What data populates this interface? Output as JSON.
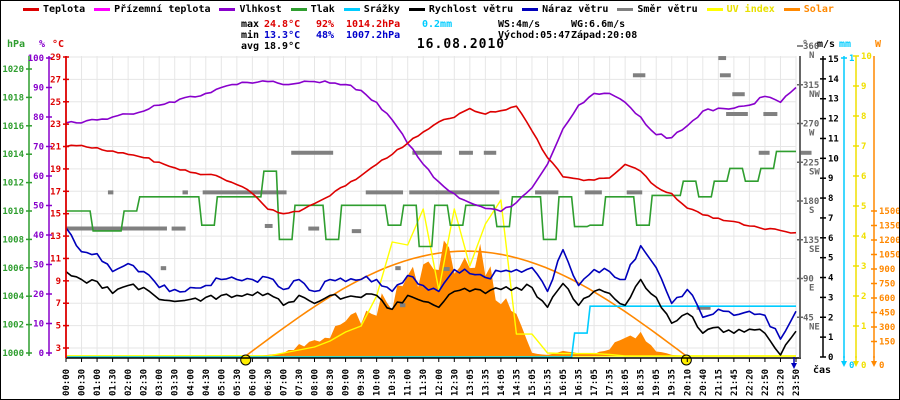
{
  "title": "16.08.2010",
  "colors": {
    "temperature": "#dd0000",
    "ground_temperature": "#ff00ff",
    "humidity": "#8800cc",
    "pressure": "#2f9e2f",
    "precipitation": "#00ccff",
    "wind_speed": "#000000",
    "wind_gust": "#0000bb",
    "wind_direction": "#808080",
    "uv_index": "#ffff00",
    "solar": "#ff8800",
    "grid": "#e6e6e6",
    "max_row": "#dd0000",
    "min_row": "#0000cc",
    "background": "#ffffff"
  },
  "legend": [
    {
      "label": "Teplota",
      "color": "#dd0000",
      "text_color": "#000000"
    },
    {
      "label": "Přízemní teplota",
      "color": "#ff00ff",
      "text_color": "#000000"
    },
    {
      "label": "Vlhkost",
      "color": "#8800cc",
      "text_color": "#000000"
    },
    {
      "label": "Tlak",
      "color": "#2f9e2f",
      "text_color": "#000000"
    },
    {
      "label": "Srážky",
      "color": "#00ccff",
      "text_color": "#000000"
    },
    {
      "label": "Rychlost větru",
      "color": "#000000",
      "text_color": "#000000"
    },
    {
      "label": "Náraz větru",
      "color": "#0000bb",
      "text_color": "#000000"
    },
    {
      "label": "Směr větru",
      "color": "#808080",
      "text_color": "#000000"
    },
    {
      "label": "UV index",
      "color": "#ffff00",
      "text_color": "#e8e000"
    },
    {
      "label": "Solar",
      "color": "#ff8800",
      "text_color": "#ff8800"
    }
  ],
  "stats": {
    "max": {
      "label": "max",
      "temp": "24.8°C",
      "hum": "92%",
      "pres": "1014.2hPa",
      "rain": "0.2mm"
    },
    "min": {
      "label": "min",
      "temp": "13.3°C",
      "hum": "48%",
      "pres": "1007.2hPa"
    },
    "avg": {
      "label": "avg",
      "temp": "18.9°C"
    },
    "ws": "WS:4m/s",
    "wg": "WG:6.6m/s",
    "sunrise": "Východ:05:47",
    "sunset": "Západ:20:08"
  },
  "axes": {
    "left": [
      {
        "id": "pressure",
        "header": "hPa",
        "color": "#2f9e2f",
        "ticks": [
          1020,
          1018,
          1016,
          1014,
          1012,
          1010,
          1008,
          1006,
          1004,
          1002,
          1000
        ]
      },
      {
        "id": "humidity",
        "header": "%",
        "color": "#8800cc",
        "ticks": [
          100,
          90,
          80,
          70,
          60,
          50,
          40,
          30,
          20,
          10,
          0
        ]
      },
      {
        "id": "temp",
        "header": "°C",
        "color": "#dd0000",
        "ticks": [
          29,
          27,
          25,
          23,
          21,
          19,
          17,
          15,
          13,
          11,
          9,
          7,
          5,
          3
        ]
      }
    ],
    "right": [
      {
        "id": "dir",
        "header": "°",
        "color": "#666666",
        "dirticks": [
          {
            "v": 360,
            "c": "N"
          },
          {
            "v": 315,
            "c": "NW"
          },
          {
            "v": 270,
            "c": "W"
          },
          {
            "v": 225,
            "c": "SW"
          },
          {
            "v": 180,
            "c": "S"
          },
          {
            "v": 135,
            "c": "SE"
          },
          {
            "v": 90,
            "c": "E"
          },
          {
            "v": 45,
            "c": "NE"
          }
        ]
      },
      {
        "id": "ms",
        "header": "m/s",
        "color": "#000000",
        "ticks": [
          15,
          14,
          13,
          12,
          11,
          10,
          9,
          8,
          7,
          6,
          5,
          4,
          3,
          2,
          1,
          0
        ]
      },
      {
        "id": "mm",
        "header": "mm",
        "color": "#00ccff",
        "arrow": true,
        "ticks": [
          1,
          0
        ]
      },
      {
        "id": "uv",
        "header": "",
        "color": "#f0e000",
        "arrow": true,
        "ticks": [
          10,
          9,
          8,
          7,
          6,
          5,
          4,
          3,
          2,
          1,
          0
        ]
      },
      {
        "id": "w",
        "header": "W",
        "color": "#ff8800",
        "arrow": true,
        "ticks": [
          1500,
          1350,
          1200,
          1050,
          900,
          750,
          600,
          450,
          300,
          150,
          0
        ]
      }
    ]
  },
  "chart_data": {
    "type": "line",
    "title": "16.08.2010",
    "xlabel": "čas",
    "x_labels": [
      "00:00",
      "00:30",
      "01:00",
      "01:30",
      "02:00",
      "02:30",
      "03:00",
      "03:30",
      "04:00",
      "04:30",
      "05:00",
      "05:30",
      "06:00",
      "06:30",
      "07:00",
      "07:30",
      "08:00",
      "08:30",
      "09:00",
      "09:30",
      "10:00",
      "10:30",
      "11:00",
      "11:30",
      "12:00",
      "12:30",
      "13:05",
      "13:35",
      "14:05",
      "14:35",
      "15:05",
      "15:35",
      "16:05",
      "16:35",
      "17:05",
      "17:35",
      "18:05",
      "18:35",
      "19:05",
      "19:35",
      "20:10",
      "20:40",
      "21:15",
      "21:45",
      "22:20",
      "22:50",
      "23:20",
      "23:50"
    ],
    "series": [
      {
        "name": "Teplota",
        "unit": "°C",
        "scale": "temp",
        "color": "#dd0000",
        "style": "line",
        "values": [
          21.0,
          21.1,
          20.9,
          20.6,
          20.3,
          20.0,
          19.6,
          19.1,
          18.7,
          18.5,
          18.2,
          17.6,
          16.8,
          15.4,
          15.0,
          15.2,
          15.9,
          16.6,
          17.5,
          18.4,
          19.4,
          20.3,
          21.3,
          22.3,
          23.2,
          23.6,
          24.4,
          23.9,
          24.2,
          24.6,
          22.4,
          20.0,
          18.3,
          18.1,
          18.0,
          18.2,
          19.4,
          18.8,
          17.4,
          16.8,
          15.5,
          14.9,
          14.6,
          14.3,
          13.9,
          13.6,
          13.5,
          13.3
        ]
      },
      {
        "name": "Přízemní teplota",
        "unit": "°C",
        "scale": "temp",
        "color": "#ff00ff",
        "style": "line",
        "values": []
      },
      {
        "name": "Vlhkost",
        "unit": "%",
        "scale": "humidity",
        "color": "#8800cc",
        "style": "line",
        "values": [
          78,
          78,
          79,
          80,
          81,
          82,
          84,
          85,
          87,
          88,
          90,
          91,
          91.5,
          92,
          91,
          91.5,
          92,
          91.5,
          91,
          89,
          85,
          79,
          71,
          64,
          58,
          54,
          51,
          49,
          48,
          51,
          56,
          64,
          76,
          84,
          88,
          88,
          85,
          80,
          74,
          73,
          77,
          82,
          83,
          83,
          84,
          87,
          85,
          90
        ]
      },
      {
        "name": "Tlak",
        "unit": "hPa",
        "scale": "pressure",
        "color": "#2f9e2f",
        "style": "step",
        "values": [
          1010,
          1010,
          1008.6,
          1008.6,
          1010,
          1011,
          1011,
          1011,
          1011,
          1009,
          1011,
          1011,
          1011,
          1012.8,
          1008,
          1010.4,
          1010.4,
          1008,
          1010.4,
          1010.4,
          1010.4,
          1009,
          1010.4,
          1007.5,
          1010.4,
          1009,
          1010.4,
          1010.4,
          1008.9,
          1011,
          1011,
          1008,
          1011,
          1008.9,
          1009,
          1011,
          1011,
          1009,
          1011.1,
          1011.1,
          1012.1,
          1011,
          1012.1,
          1013,
          1012.1,
          1013,
          1014.2,
          1014.2
        ]
      },
      {
        "name": "Srážky",
        "unit": "mm",
        "scale": "mm",
        "color": "#00ccff",
        "style": "step",
        "values": [
          0,
          0,
          0,
          0,
          0,
          0,
          0,
          0,
          0,
          0,
          0,
          0,
          0,
          0,
          0,
          0,
          0,
          0,
          0,
          0,
          0,
          0,
          0,
          0,
          0,
          0,
          0,
          0,
          0,
          0,
          0,
          0,
          0,
          0.08,
          0.17,
          0.17,
          0.17,
          0.17,
          0.17,
          0.17,
          0.17,
          0.17,
          0.17,
          0.17,
          0.17,
          0.17,
          0.17,
          0.17
        ]
      },
      {
        "name": "Rychlost větru",
        "unit": "m/s",
        "scale": "ms",
        "color": "#000000",
        "style": "line",
        "values": [
          4.3,
          3.9,
          3.8,
          3.2,
          3.6,
          3.5,
          2.9,
          2.8,
          2.9,
          3.0,
          3.1,
          3.1,
          3.1,
          3.2,
          2.6,
          3.1,
          2.7,
          3.1,
          3.0,
          3.0,
          3.1,
          2.4,
          3.1,
          2.8,
          2.5,
          3.3,
          3.3,
          3.2,
          3.4,
          3.5,
          3.5,
          2.5,
          3.7,
          2.6,
          3.3,
          3.2,
          2.6,
          3.9,
          3.0,
          1.7,
          2.2,
          1.2,
          1.5,
          1.2,
          1.4,
          1.2,
          0.1,
          1.3
        ]
      },
      {
        "name": "Náraz větru",
        "unit": "m/s",
        "scale": "ms",
        "color": "#0000bb",
        "style": "line",
        "values": [
          6.5,
          5.3,
          5.2,
          4.3,
          4.7,
          4.3,
          3.5,
          3.4,
          3.5,
          3.6,
          3.9,
          3.9,
          3.9,
          4.0,
          3.4,
          3.9,
          3.3,
          3.9,
          3.8,
          3.9,
          3.9,
          3.3,
          4.1,
          3.6,
          3.3,
          4.4,
          4.2,
          4.0,
          4.3,
          4.4,
          4.5,
          3.3,
          5.4,
          3.6,
          4.4,
          4.3,
          3.9,
          5.6,
          4.5,
          2.7,
          3.4,
          2.0,
          2.4,
          2.1,
          2.3,
          2.1,
          0.9,
          2.3
        ]
      },
      {
        "name": "UV index",
        "unit": "",
        "scale": "uv",
        "color": "#ffff00",
        "style": "line",
        "values": [
          0,
          0,
          0,
          0,
          0,
          0,
          0,
          0,
          0,
          0,
          0,
          0,
          0,
          0,
          0.1,
          0.2,
          0.3,
          0.5,
          0.8,
          1.0,
          2.0,
          3.8,
          3.7,
          4.9,
          2.2,
          4.9,
          3.0,
          4.4,
          5.2,
          0.73,
          0.73,
          0.1,
          0.08,
          0.08,
          0.08,
          0.05,
          0,
          0,
          0,
          0,
          0,
          0,
          0,
          0,
          0,
          0,
          0,
          0
        ]
      },
      {
        "name": "Solar",
        "unit": "W",
        "scale": "w",
        "color": "#ff8800",
        "style": "area",
        "values": [
          0,
          0,
          0,
          0,
          0,
          0,
          0,
          0,
          0,
          0,
          0,
          0,
          0,
          10,
          30,
          100,
          150,
          220,
          420,
          360,
          510,
          630,
          700,
          900,
          1150,
          950,
          1190,
          800,
          640,
          460,
          30,
          10,
          50,
          30,
          20,
          80,
          230,
          240,
          50,
          10,
          0,
          0,
          0,
          0,
          0,
          0,
          0,
          0
        ]
      }
    ],
    "solar_clear_sky": {
      "peak_w": 1085,
      "start": "05:47",
      "end": "20:08"
    },
    "sun_markers": {
      "sunrise": "05:47",
      "sunset": "20:08"
    },
    "wind_direction_points": [
      {
        "i": 0,
        "len": 6.5,
        "deg": 148
      },
      {
        "i": 6.8,
        "len": 0.9,
        "deg": 148
      },
      {
        "i": 2.7,
        "len": 0.35,
        "deg": 190
      },
      {
        "i": 6.1,
        "len": 0.35,
        "deg": 102
      },
      {
        "i": 7.5,
        "len": 0.35,
        "deg": 190
      },
      {
        "i": 8.8,
        "len": 5.4,
        "deg": 190
      },
      {
        "i": 12.8,
        "len": 0.5,
        "deg": 151
      },
      {
        "i": 14.5,
        "len": 2.7,
        "deg": 236
      },
      {
        "i": 15.6,
        "len": 0.7,
        "deg": 148
      },
      {
        "i": 18.4,
        "len": 0.6,
        "deg": 145
      },
      {
        "i": 19.3,
        "len": 2.4,
        "deg": 190
      },
      {
        "i": 22.1,
        "len": 1.8,
        "deg": 190
      },
      {
        "i": 21.2,
        "len": 0.35,
        "deg": 102
      },
      {
        "i": 21.5,
        "len": 0.35,
        "deg": 59
      },
      {
        "i": 22.3,
        "len": 1.9,
        "deg": 236
      },
      {
        "i": 23.8,
        "len": 4.1,
        "deg": 190
      },
      {
        "i": 25.3,
        "len": 0.9,
        "deg": 236
      },
      {
        "i": 26.9,
        "len": 0.8,
        "deg": 236
      },
      {
        "i": 24.3,
        "len": 0.4,
        "deg": 101
      },
      {
        "i": 30.2,
        "len": 1.5,
        "deg": 190
      },
      {
        "i": 33.4,
        "len": 1.1,
        "deg": 190
      },
      {
        "i": 36.1,
        "len": 1.0,
        "deg": 190
      },
      {
        "i": 36.5,
        "len": 0.8,
        "deg": 326
      },
      {
        "i": 40.6,
        "len": 0.9,
        "deg": 56
      },
      {
        "i": 42.0,
        "len": 0.5,
        "deg": 346
      },
      {
        "i": 42.1,
        "len": 0.7,
        "deg": 326
      },
      {
        "i": 42.9,
        "len": 0.8,
        "deg": 304
      },
      {
        "i": 42.5,
        "len": 1.4,
        "deg": 281
      },
      {
        "i": 44.9,
        "len": 0.9,
        "deg": 281
      },
      {
        "i": 44.6,
        "len": 0.7,
        "deg": 236
      },
      {
        "i": 47.3,
        "len": 0.7,
        "deg": 236
      }
    ],
    "axis_ranges": {
      "temp": [
        3,
        29
      ],
      "humidity": [
        0,
        100
      ],
      "pressure": [
        1000,
        1020
      ],
      "wind": [
        0,
        15
      ],
      "precip": [
        0,
        1
      ],
      "uv": [
        0,
        10
      ],
      "solar": [
        0,
        1500
      ],
      "direction": [
        0,
        360
      ]
    }
  }
}
